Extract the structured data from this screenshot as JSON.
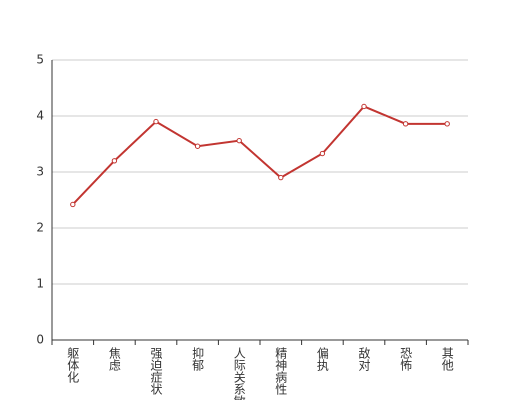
{
  "chart_data": {
    "type": "line",
    "categories": [
      "躯体化",
      "焦虑",
      "强迫症状",
      "抑郁",
      "人际关系敏感",
      "精神病性",
      "偏执",
      "敌对",
      "恐怖",
      "其他"
    ],
    "series": [
      {
        "color": "#c23531",
        "values": [
          2.42,
          3.2,
          3.9,
          3.46,
          3.56,
          2.9,
          3.33,
          4.17,
          3.86,
          3.86
        ]
      }
    ],
    "ylim": [
      0,
      5
    ],
    "yticks": [
      0,
      1,
      2,
      3,
      4,
      5
    ],
    "grid": true
  }
}
